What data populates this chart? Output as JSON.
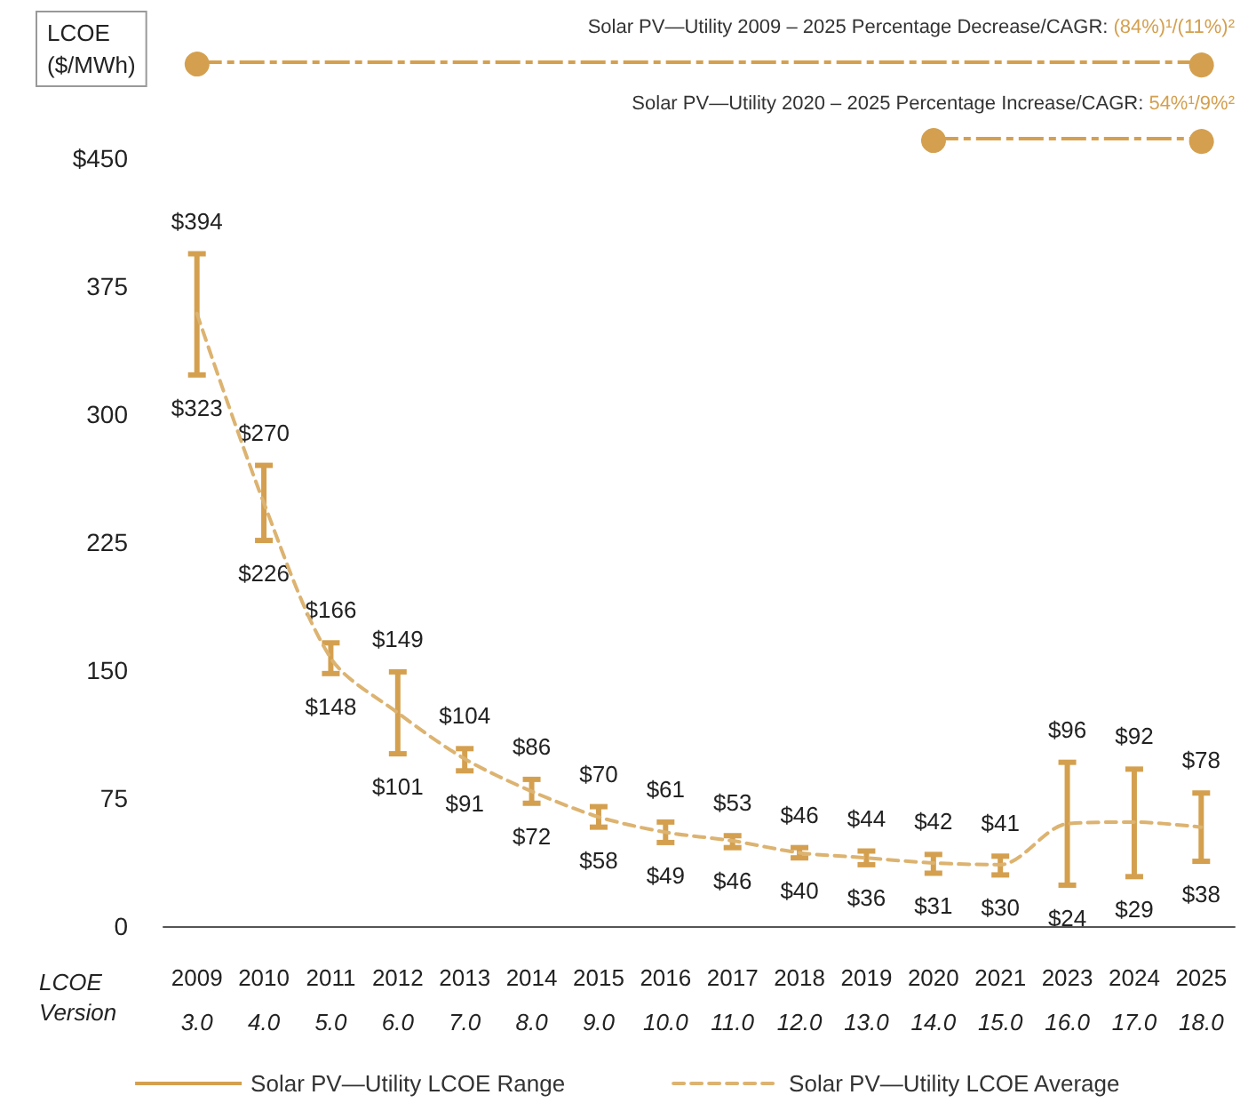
{
  "chart_data": {
    "type": "line",
    "ylabel": "LCOE\n($/MWh)",
    "xlabel": "LCOE Version",
    "categories": [
      "2009\n3.0",
      "2010\n4.0",
      "2011\n5.0",
      "2012\n6.0",
      "2013\n7.0",
      "2014\n8.0",
      "2015\n9.0",
      "2016\n10.0",
      "2017\n11.0",
      "2018\n12.0",
      "2019\n13.0",
      "2020\n14.0",
      "2021\n15.0",
      "2023\n16.0",
      "2024\n17.0",
      "2025\n18.0"
    ],
    "series": [
      {
        "name": "Solar PV—Utility LCOE Range",
        "type": "bar",
        "color": "#d4a04f",
        "base": [
          323,
          226,
          148,
          101,
          91,
          72,
          58,
          49,
          46,
          40,
          36,
          31,
          30,
          24,
          29,
          38
        ],
        "values": [
          71,
          44,
          18,
          48,
          13,
          14,
          12,
          12,
          7,
          6,
          8,
          11,
          11,
          72,
          63,
          40
        ]
      },
      {
        "name": "Solar PV—Utility LCOE Average",
        "color": "#dcb370",
        "line_style": "dashed",
        "marker": "none",
        "values": [
          359,
          248,
          157,
          125,
          98,
          79,
          64,
          55,
          50,
          43,
          40,
          37,
          36,
          60,
          61,
          58
        ]
      }
    ],
    "ylim": [
      0,
      450
    ],
    "yticks": [
      0,
      75,
      150,
      225,
      300,
      375,
      {
        "value": 450,
        "label": "$450"
      }
    ],
    "grid": false,
    "legend": "bottom",
    "annotations": [
      "Solar PV—Utility 2009 – 2025 Percentage Decrease/CAGR: (84%)¹/(11%)²",
      "Solar PV—Utility 2020 – 2025 Percentage Increase/CAGR: 54%¹/9%²",
      {
        "text": "$394",
        "x": "2009\n3.0",
        "y": 394
      },
      {
        "text": "$323",
        "x": "2009\n3.0",
        "y": 323
      },
      {
        "text": "$270",
        "x": "2010\n4.0",
        "y": 270
      },
      {
        "text": "$226",
        "x": "2010\n4.0",
        "y": 226
      },
      {
        "text": "$166",
        "x": "2011\n5.0",
        "y": 166
      },
      {
        "text": "$148",
        "x": "2011\n5.0",
        "y": 148
      },
      {
        "text": "$149",
        "x": "2012\n6.0",
        "y": 149
      },
      {
        "text": "$101",
        "x": "2012\n6.0",
        "y": 101
      },
      {
        "text": "$104",
        "x": "2013\n7.0",
        "y": 104
      },
      {
        "text": "$91",
        "x": "2013\n7.0",
        "y": 91
      },
      {
        "text": "$86",
        "x": "2014\n8.0",
        "y": 86
      },
      {
        "text": "$72",
        "x": "2014\n8.0",
        "y": 72
      },
      {
        "text": "$70",
        "x": "2015\n9.0",
        "y": 70
      },
      {
        "text": "$58",
        "x": "2015\n9.0",
        "y": 58
      },
      {
        "text": "$61",
        "x": "2016\n10.0",
        "y": 61
      },
      {
        "text": "$49",
        "x": "2016\n10.0",
        "y": 49
      },
      {
        "text": "$53",
        "x": "2017\n11.0",
        "y": 53
      },
      {
        "text": "$46",
        "x": "2017\n11.0",
        "y": 46
      },
      {
        "text": "$46",
        "x": "2018\n12.0",
        "y": 46
      },
      {
        "text": "$40",
        "x": "2018\n12.0",
        "y": 40
      },
      {
        "text": "$44",
        "x": "2019\n13.0",
        "y": 44
      },
      {
        "text": "$36",
        "x": "2019\n13.0",
        "y": 36
      },
      {
        "text": "$42",
        "x": "2020\n14.0",
        "y": 42
      },
      {
        "text": "$31",
        "x": "2020\n14.0",
        "y": 31
      },
      {
        "text": "$41",
        "x": "2021\n15.0",
        "y": 41
      },
      {
        "text": "$30",
        "x": "2021\n15.0",
        "y": 30
      },
      {
        "text": "$96",
        "x": "2023\n16.0",
        "y": 96
      },
      {
        "text": "$24",
        "x": "2023\n16.0",
        "y": 24
      },
      {
        "text": "$92",
        "x": "2024\n17.0",
        "y": 92
      },
      {
        "text": "$29",
        "x": "2024\n17.0",
        "y": 29
      },
      {
        "text": "$78",
        "x": "2025\n18.0",
        "y": 78
      },
      {
        "text": "$38",
        "x": "2025\n18.0",
        "y": 38
      }
    ]
  }
}
